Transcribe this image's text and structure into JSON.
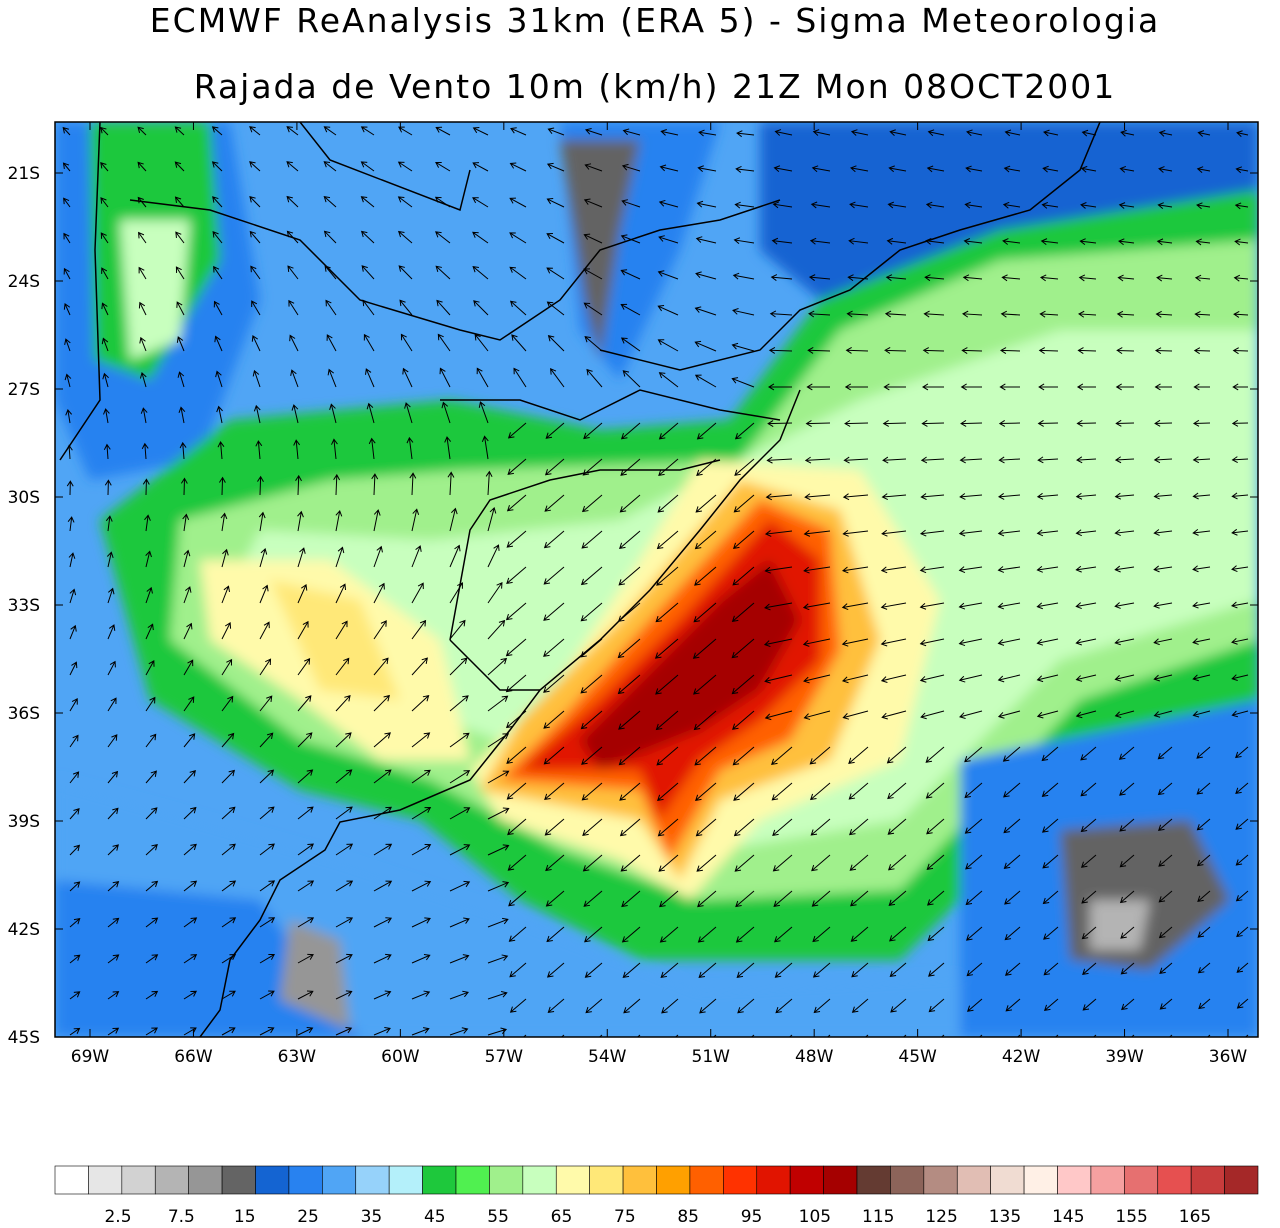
{
  "title": "ECMWF ReAnalysis 31km (ERA 5) - Sigma Meteorologia",
  "subtitle": "Rajada de Vento 10m (km/h) 21Z Mon 08OCT2001",
  "lat_labels": [
    "21S",
    "24S",
    "27S",
    "30S",
    "33S",
    "36S",
    "39S",
    "42S",
    "45S"
  ],
  "lon_labels": [
    "69W",
    "66W",
    "63W",
    "60W",
    "57W",
    "54W",
    "51W",
    "48W",
    "45W",
    "42W",
    "39W",
    "36W"
  ],
  "colorbar": {
    "colors": [
      "#ffffff",
      "#e6e6e6",
      "#d2d2d2",
      "#b4b4b4",
      "#969696",
      "#646464",
      "#1464d2",
      "#2882f0",
      "#50a5f5",
      "#96d2fa",
      "#b4f0fa",
      "#1ec83c",
      "#50f050",
      "#a0f08c",
      "#c8ffbe",
      "#fffaaa",
      "#ffe878",
      "#ffc03c",
      "#ffa000",
      "#ff6000",
      "#ff3200",
      "#e11400",
      "#c00000",
      "#a50000",
      "#643b32",
      "#8c645a",
      "#b48c82",
      "#e1beb4",
      "#f0dcd2",
      "#fff0e6",
      "#ffc8c8",
      "#f5a0a0",
      "#e67070",
      "#e65050",
      "#c83c3c",
      "#a52828"
    ],
    "labels": [
      2.5,
      7.5,
      15,
      25,
      35,
      45,
      55,
      65,
      75,
      85,
      95,
      105,
      115,
      125,
      135,
      145,
      155,
      165
    ]
  }
}
